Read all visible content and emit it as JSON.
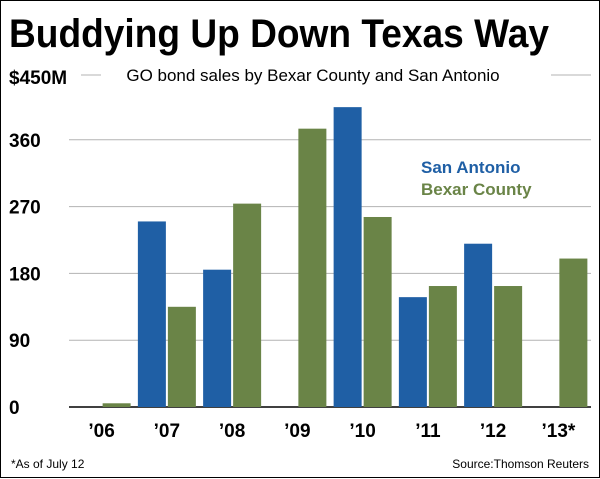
{
  "chart_data": {
    "type": "bar",
    "title": "Buddying Up Down Texas Way",
    "subtitle": "GO bond sales by Bexar County and San Antonio",
    "y_top_label": "$450M",
    "categories": [
      "’06",
      "’07",
      "’08",
      "’09",
      "’10",
      "’11",
      "’12",
      "’13*"
    ],
    "series": [
      {
        "name": "San Antonio",
        "color": "#1f5fa5",
        "values": [
          0,
          250,
          185,
          0,
          404,
          148,
          220,
          0
        ]
      },
      {
        "name": "Bexar County",
        "color": "#6a8447",
        "values": [
          5,
          135,
          274,
          375,
          256,
          163,
          163,
          200
        ]
      }
    ],
    "y_ticks": [
      "0",
      "90",
      "180",
      "270",
      "360"
    ],
    "ylim": [
      0,
      450
    ],
    "grid": true,
    "legend_position": "right-middle",
    "footnote": "*As of July 12",
    "source": "Source:Thomson Reuters"
  }
}
